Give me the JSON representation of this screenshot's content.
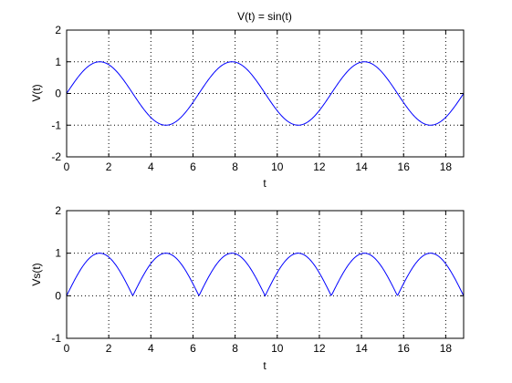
{
  "chart_data": [
    {
      "type": "line",
      "title": "V(t) = sin(t)",
      "xlabel": "t",
      "ylabel": "V(t)",
      "xlim": [
        0,
        18.85
      ],
      "ylim": [
        -2,
        2
      ],
      "xticks": [
        0,
        2,
        4,
        6,
        8,
        10,
        12,
        14,
        16,
        18
      ],
      "yticks": [
        -2,
        -1,
        0,
        1,
        2
      ],
      "grid": "dotted",
      "series_color": "#0000ff",
      "series": [
        {
          "expression": "sin(t)",
          "x": [
            0,
            0.5,
            1,
            1.5708,
            2,
            2.5,
            3,
            3.1416,
            3.5,
            4,
            4.7124,
            5,
            5.5,
            6,
            6.2832,
            7,
            7.854,
            8.5,
            9.4248,
            10,
            10.9956,
            11.5,
            12.5664,
            13,
            14.1372,
            15,
            15.708,
            16.5,
            17.2788,
            18,
            18.85
          ],
          "values": [
            0,
            0.479,
            0.841,
            1,
            0.909,
            0.598,
            0.141,
            0,
            -0.351,
            -0.757,
            -1,
            -0.959,
            -0.706,
            -0.279,
            0,
            0.657,
            1,
            0.798,
            0,
            -0.544,
            -1,
            -0.875,
            0,
            0.42,
            1,
            0.65,
            0,
            -0.712,
            -1,
            -0.751,
            0
          ]
        }
      ]
    },
    {
      "type": "line",
      "title": "",
      "xlabel": "t",
      "ylabel": "Vs(t)",
      "xlim": [
        0,
        18.85
      ],
      "ylim": [
        -1,
        2
      ],
      "xticks": [
        0,
        2,
        4,
        6,
        8,
        10,
        12,
        14,
        16,
        18
      ],
      "yticks": [
        -1,
        0,
        1,
        2
      ],
      "grid": "dotted",
      "series_color": "#0000ff",
      "series": [
        {
          "expression": "|sin(t)|",
          "x": [
            0,
            0.5,
            1,
            1.5708,
            2,
            2.5,
            3,
            3.1416,
            3.5,
            4,
            4.7124,
            5,
            5.5,
            6,
            6.2832,
            7,
            7.854,
            8.5,
            9.4248,
            10,
            10.9956,
            11.5,
            12.5664,
            13,
            14.1372,
            15,
            15.708,
            16.5,
            17.2788,
            18,
            18.85
          ],
          "values": [
            0,
            0.479,
            0.841,
            1,
            0.909,
            0.598,
            0.141,
            0,
            0.351,
            0.757,
            1,
            0.959,
            0.706,
            0.279,
            0,
            0.657,
            1,
            0.798,
            0,
            0.544,
            1,
            0.875,
            0,
            0.42,
            1,
            0.65,
            0,
            0.712,
            1,
            0.751,
            0
          ]
        }
      ]
    }
  ]
}
